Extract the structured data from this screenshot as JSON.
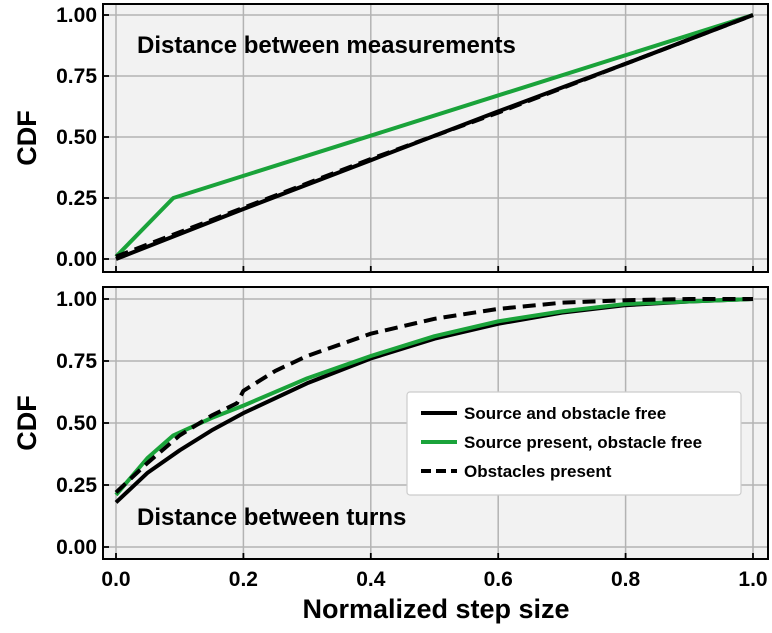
{
  "chart_data": [
    {
      "type": "line",
      "title": "Distance between measurements",
      "xlabel": "",
      "ylabel": "CDF",
      "xlim": [
        0,
        1
      ],
      "ylim": [
        0,
        1
      ],
      "xticks": [
        "0.0",
        "0.2",
        "0.4",
        "0.6",
        "0.8",
        "1.0"
      ],
      "yticks": [
        "0.00",
        "0.25",
        "0.50",
        "0.75",
        "1.00"
      ],
      "grid": true,
      "series": [
        {
          "name": "Source present, obstacle free",
          "color": "#1aa33a",
          "style": "solid",
          "x": [
            0,
            0.09,
            1.0
          ],
          "y": [
            0.01,
            0.25,
            1.0
          ]
        },
        {
          "name": "Obstacles present",
          "color": "#000000",
          "style": "dashed",
          "x": [
            0,
            0.2,
            0.4,
            0.6,
            0.8,
            1.0
          ],
          "y": [
            0.01,
            0.21,
            0.41,
            0.6,
            0.8,
            1.0
          ]
        },
        {
          "name": "Source and obstacle free",
          "color": "#000000",
          "style": "solid",
          "x": [
            0,
            0.2,
            0.4,
            0.6,
            0.8,
            1.0
          ],
          "y": [
            0.0,
            0.205,
            0.405,
            0.605,
            0.8,
            1.0
          ]
        }
      ]
    },
    {
      "type": "line",
      "title": "Distance between turns",
      "xlabel": "Normalized step size",
      "ylabel": "CDF",
      "xlim": [
        0,
        1
      ],
      "ylim": [
        0,
        1
      ],
      "xticks": [
        "0.0",
        "0.2",
        "0.4",
        "0.6",
        "0.8",
        "1.0"
      ],
      "yticks": [
        "0.00",
        "0.25",
        "0.50",
        "0.75",
        "1.00"
      ],
      "grid": true,
      "legend": {
        "position": "center-right",
        "entries": [
          "Source and obstacle free",
          "Source present, obstacle free",
          "Obstacles present"
        ]
      },
      "series": [
        {
          "name": "Source and obstacle free",
          "color": "#000000",
          "style": "solid",
          "x": [
            0,
            0.05,
            0.1,
            0.15,
            0.2,
            0.3,
            0.4,
            0.5,
            0.6,
            0.7,
            0.8,
            0.9,
            1.0
          ],
          "y": [
            0.18,
            0.3,
            0.39,
            0.47,
            0.54,
            0.66,
            0.76,
            0.84,
            0.9,
            0.945,
            0.975,
            0.99,
            1.0
          ]
        },
        {
          "name": "Source present, obstacle free",
          "color": "#1aa33a",
          "style": "solid",
          "x": [
            0,
            0.05,
            0.09,
            0.15,
            0.2,
            0.3,
            0.4,
            0.5,
            0.6,
            0.7,
            0.8,
            0.9,
            1.0
          ],
          "y": [
            0.21,
            0.36,
            0.45,
            0.52,
            0.57,
            0.68,
            0.77,
            0.85,
            0.91,
            0.95,
            0.98,
            0.99,
            1.0
          ]
        },
        {
          "name": "Obstacles present",
          "color": "#000000",
          "style": "dashed",
          "x": [
            0,
            0.05,
            0.1,
            0.15,
            0.19,
            0.2,
            0.25,
            0.3,
            0.4,
            0.5,
            0.6,
            0.7,
            0.8,
            0.9,
            1.0
          ],
          "y": [
            0.22,
            0.34,
            0.45,
            0.53,
            0.58,
            0.63,
            0.71,
            0.77,
            0.86,
            0.92,
            0.96,
            0.985,
            0.995,
            1.0,
            1.0
          ]
        }
      ]
    }
  ]
}
